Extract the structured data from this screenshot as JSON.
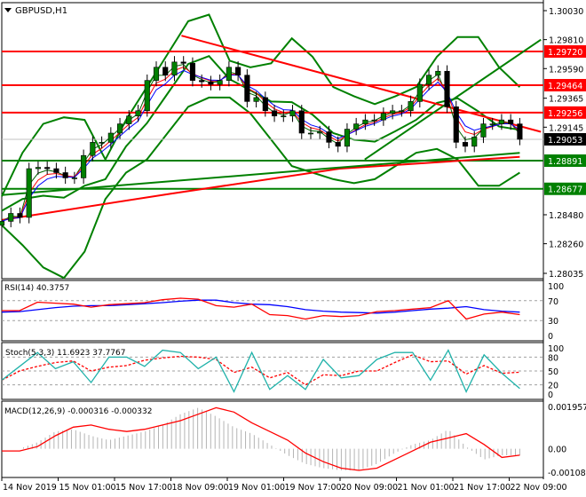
{
  "chart_data": {
    "type": "candlestick",
    "symbol_title": "GBPUSD,H1",
    "start": "14 Nov 09:00",
    "end": "22 Nov 12:00",
    "price_range": [
      1.28035,
      1.3003
    ],
    "price_ticks": [
      "1.30030",
      "1.29810",
      "1.29590",
      "1.29365",
      "1.29145",
      "1.28480",
      "1.28260",
      "1.28035"
    ],
    "closes": [
      1.2843,
      1.2849,
      1.2846,
      1.2883,
      1.2884,
      1.2883,
      1.288,
      1.2876,
      1.2876,
      1.2893,
      1.2903,
      1.2903,
      1.291,
      1.2917,
      1.2923,
      1.2927,
      1.295,
      1.296,
      1.2954,
      1.2964,
      1.2963,
      1.295,
      1.2949,
      1.2947,
      1.295,
      1.296,
      1.2954,
      1.2934,
      1.2937,
      1.2927,
      1.2923,
      1.2923,
      1.2927,
      1.291,
      1.291,
      1.2911,
      1.2903,
      1.29,
      1.2913,
      1.2917,
      1.292,
      1.292,
      1.2925,
      1.2927,
      1.2927,
      1.2934,
      1.2947,
      1.2954,
      1.2957,
      1.293,
      1.2903,
      1.29,
      1.2907,
      1.2917,
      1.2917,
      1.292,
      1.2917,
      1.29053
    ],
    "bollinger_upper": [
      1.2862,
      1.2895,
      1.2917,
      1.2922,
      1.292,
      1.289,
      1.292,
      1.2945,
      1.297,
      1.2995,
      1.3,
      1.2965,
      1.296,
      1.2963,
      1.2982,
      1.2968,
      1.2945,
      1.2938,
      1.2932,
      1.2938,
      1.2945,
      1.2968,
      1.2983,
      1.2983,
      1.296,
      1.2945
    ],
    "bollinger_lower": [
      1.284,
      1.2825,
      1.2808,
      1.28,
      1.282,
      1.286,
      1.288,
      1.289,
      1.291,
      1.293,
      1.2937,
      1.2937,
      1.2925,
      1.2905,
      1.2885,
      1.288,
      1.2875,
      1.2872,
      1.2875,
      1.2885,
      1.2895,
      1.2898,
      1.289,
      1.287,
      1.287,
      1.288
    ],
    "levels": [
      {
        "price": 1.2972,
        "label": "1.29720",
        "color": "#ff0000"
      },
      {
        "price": 1.29464,
        "label": "1.29464",
        "color": "#ff0000"
      },
      {
        "price": 1.29256,
        "label": "1.29256",
        "color": "#ff0000"
      },
      {
        "price": 1.28891,
        "label": "1.28891",
        "color": "#008000"
      },
      {
        "price": 1.28677,
        "label": "1.28677",
        "color": "#008000"
      }
    ],
    "current_price": {
      "price": 1.29053,
      "label": "1.29053",
      "color": "#000000"
    },
    "trendlines": [
      {
        "color": "#ff0000",
        "from": [
          "18 Nov 12:00",
          1.2984
        ],
        "to": [
          "22 Nov 18:00",
          1.2911
        ]
      },
      {
        "color": "#008000",
        "from": [
          "20 Nov 16:00",
          1.289
        ],
        "to": [
          "22 Nov 18:00",
          1.2981
        ]
      },
      {
        "color": "#008000",
        "from": [
          "14 Nov 09:00",
          1.2863
        ],
        "to": [
          "22 Nov 12:00",
          1.2895
        ]
      }
    ],
    "long_ma": {
      "color": "#ff0000",
      "points": [
        [
          "14 Nov 09:00",
          1.2844
        ],
        [
          "18 Nov 09:00",
          1.2864
        ],
        [
          "20 Nov 09:00",
          1.2883
        ],
        [
          "22 Nov 12:00",
          1.2892
        ]
      ]
    },
    "time_labels": [
      "14 Nov 2019",
      "15 Nov 01:00",
      "15 Nov 17:00",
      "18 Nov 09:00",
      "19 Nov 01:00",
      "19 Nov 17:00",
      "20 Nov 09:00",
      "21 Nov 01:00",
      "21 Nov 17:00",
      "22 Nov 09:00"
    ],
    "rsi": {
      "label": "RSI(14) 40.3757",
      "ticks": [
        "100",
        "70",
        "30",
        "0"
      ],
      "values": [
        50,
        50,
        67,
        65,
        63,
        57,
        62,
        64,
        66,
        72,
        75,
        73,
        60,
        57,
        63,
        42,
        40,
        33,
        40,
        38,
        40,
        48,
        50,
        53,
        56,
        70,
        33,
        43,
        47,
        42
      ],
      "ma": [
        47,
        48,
        52,
        56,
        59,
        60,
        60,
        62,
        64,
        66,
        69,
        71,
        71,
        66,
        63,
        62,
        58,
        52,
        49,
        47,
        46,
        45,
        47,
        50,
        53,
        55,
        58,
        52,
        49,
        47
      ],
      "colors": {
        "rsi": "#ff0000",
        "ma": "#0000ff"
      }
    },
    "stoch": {
      "label": "Stoch(5,3,3) 11.6923 37.7767",
      "ticks": [
        "100",
        "80",
        "50",
        "20",
        "0"
      ],
      "k": [
        30,
        60,
        90,
        55,
        70,
        25,
        80,
        80,
        60,
        95,
        90,
        55,
        80,
        5,
        90,
        10,
        40,
        10,
        75,
        35,
        40,
        75,
        90,
        90,
        30,
        95,
        5,
        85,
        45,
        12
      ],
      "colors": {
        "k": "#20b2aa",
        "d": "#ff0000"
      }
    },
    "macd": {
      "label": "MACD(12,26,9) -0.000316 -0.000332",
      "ticks": [
        "0.001957",
        "0.00",
        "-0.001083"
      ],
      "range": [
        -0.001083,
        0.001957
      ],
      "histogram": [
        0,
        0,
        0.0003,
        0.0008,
        0.0009,
        0.0006,
        0.0004,
        0.0006,
        0.0008,
        0.0011,
        0.0016,
        0.0019,
        0.0015,
        0.001,
        0.0007,
        0.0002,
        -0.0003,
        -0.0007,
        -0.0009,
        -0.001,
        -0.001,
        -0.0007,
        -0.0002,
        0.0002,
        0.0004,
        0.0009,
        0.0001,
        -0.0005,
        -0.0003,
        -0.0003
      ],
      "signal": [
        -0.0001,
        -0.0001,
        0.0001,
        0.0006,
        0.001,
        0.0011,
        0.0009,
        0.0008,
        0.0009,
        0.0011,
        0.0013,
        0.0016,
        0.0019,
        0.0017,
        0.0012,
        0.0008,
        0.0004,
        -0.0002,
        -0.0006,
        -0.0009,
        -0.001,
        -0.0009,
        -0.0005,
        -0.0001,
        0.0003,
        0.0005,
        0.0007,
        0.0002,
        -0.0004,
        -0.0003
      ],
      "colors": {
        "histogram": "#b4b4b4",
        "signal": "#ff0000"
      }
    }
  }
}
